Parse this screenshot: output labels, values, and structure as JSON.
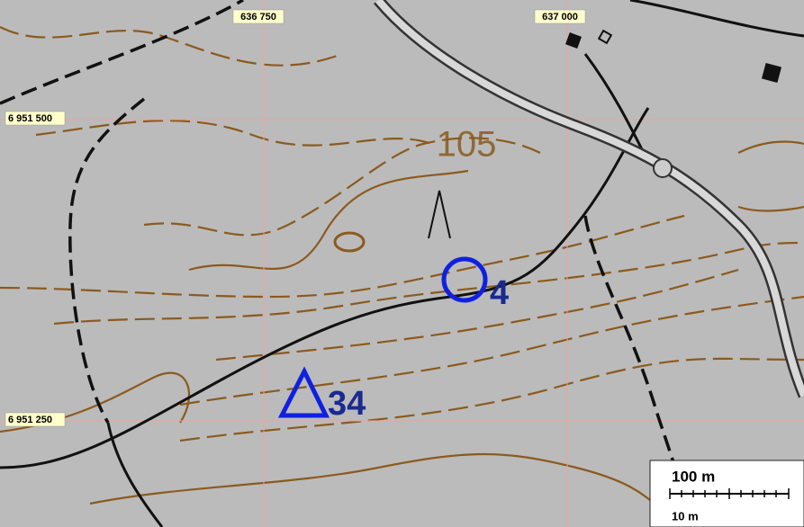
{
  "grid": {
    "x_labels": [
      "636 750",
      "637 000"
    ],
    "y_labels": [
      "6 951 500",
      "6 951 250"
    ]
  },
  "contour_label": "105",
  "markers": [
    {
      "label": "4"
    },
    {
      "label": "34"
    }
  ],
  "scale_bar": {
    "major": "100 m",
    "minor": "10 m"
  }
}
